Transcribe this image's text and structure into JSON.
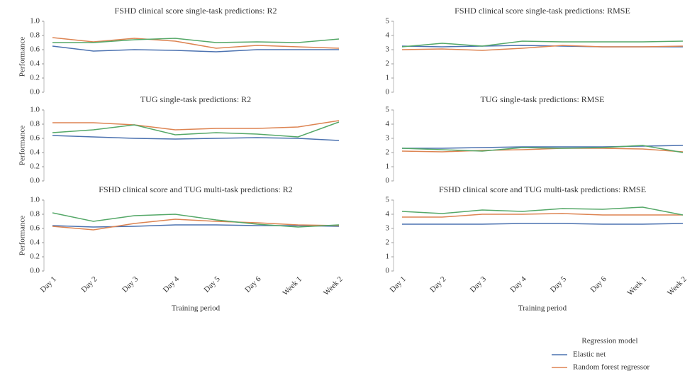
{
  "chart_data": [
    {
      "type": "line",
      "title": "FSHD clinical score single-task predictions: R2",
      "y_label": "Performance",
      "ylim": [
        0,
        1
      ],
      "yticks": [
        {
          "value": 0,
          "label": "0.0"
        },
        0.2,
        0.4,
        0.6,
        0.8,
        {
          "value": 1,
          "label": "1.0"
        }
      ],
      "series": [
        {
          "color": "#4c72b0",
          "values": [
            0.65,
            0.58,
            0.6,
            0.59,
            0.57,
            0.6,
            0.6,
            0.6
          ]
        },
        {
          "color": "#dd8452",
          "values": [
            0.77,
            0.71,
            0.76,
            0.72,
            0.62,
            0.66,
            0.64,
            0.62
          ]
        },
        {
          "color": "#55a868",
          "values": [
            0.7,
            0.7,
            0.74,
            0.76,
            0.7,
            0.71,
            0.7,
            0.75
          ]
        }
      ]
    },
    {
      "type": "line",
      "title": "FSHD clinical score single-task predictions: RMSE",
      "ylim": [
        0,
        5
      ],
      "yticks": [
        0,
        1,
        2,
        3,
        4,
        5
      ],
      "series": [
        {
          "color": "#4c72b0",
          "values": [
            3.25,
            3.2,
            3.25,
            3.3,
            3.25,
            3.2,
            3.2,
            3.2
          ]
        },
        {
          "color": "#dd8452",
          "values": [
            3.0,
            3.05,
            2.95,
            3.1,
            3.3,
            3.2,
            3.2,
            3.25
          ]
        },
        {
          "color": "#55a868",
          "values": [
            3.2,
            3.45,
            3.25,
            3.6,
            3.55,
            3.55,
            3.55,
            3.6
          ]
        }
      ]
    },
    {
      "type": "line",
      "title": "TUG single-task predictions: R2",
      "y_label": "Performance",
      "ylim": [
        0,
        1
      ],
      "yticks": [
        {
          "value": 0,
          "label": "0.0"
        },
        0.2,
        0.4,
        0.6,
        0.8,
        {
          "value": 1,
          "label": "1.0"
        }
      ],
      "series": [
        {
          "color": "#4c72b0",
          "values": [
            0.64,
            0.62,
            0.6,
            0.59,
            0.6,
            0.61,
            0.6,
            0.57
          ]
        },
        {
          "color": "#dd8452",
          "values": [
            0.82,
            0.82,
            0.79,
            0.72,
            0.74,
            0.74,
            0.76,
            0.85
          ]
        },
        {
          "color": "#55a868",
          "values": [
            0.68,
            0.72,
            0.79,
            0.65,
            0.68,
            0.66,
            0.62,
            0.83
          ]
        }
      ]
    },
    {
      "type": "line",
      "title": "TUG single-task predictions: RMSE",
      "ylim": [
        0,
        5
      ],
      "yticks": [
        0,
        1,
        2,
        3,
        4,
        5
      ],
      "series": [
        {
          "color": "#4c72b0",
          "values": [
            2.3,
            2.3,
            2.35,
            2.4,
            2.4,
            2.4,
            2.45,
            2.5
          ]
        },
        {
          "color": "#dd8452",
          "values": [
            2.1,
            2.05,
            2.15,
            2.2,
            2.3,
            2.3,
            2.25,
            2.05
          ]
        },
        {
          "color": "#55a868",
          "values": [
            2.3,
            2.2,
            2.1,
            2.35,
            2.3,
            2.35,
            2.5,
            2.0
          ]
        }
      ]
    },
    {
      "type": "line",
      "title": "FSHD clinical score and TUG multi-task predictions: R2",
      "y_label": "Performance",
      "x_label": "Training period",
      "categories": [
        "Day 1",
        "Day 2",
        "Day 3",
        "Day 4",
        "Day 5",
        "Day 6",
        "Week 1",
        "Week 2"
      ],
      "ylim": [
        0,
        1
      ],
      "yticks": [
        {
          "value": 0,
          "label": "0.0"
        },
        0.2,
        0.4,
        0.6,
        0.8,
        {
          "value": 1,
          "label": "1.0"
        }
      ],
      "series": [
        {
          "color": "#4c72b0",
          "values": [
            0.64,
            0.62,
            0.63,
            0.65,
            0.65,
            0.64,
            0.64,
            0.63
          ]
        },
        {
          "color": "#dd8452",
          "values": [
            0.63,
            0.58,
            0.67,
            0.73,
            0.7,
            0.68,
            0.65,
            0.64
          ]
        },
        {
          "color": "#55a868",
          "values": [
            0.82,
            0.7,
            0.78,
            0.8,
            0.72,
            0.66,
            0.62,
            0.65
          ]
        }
      ]
    },
    {
      "type": "line",
      "title": "FSHD clinical score and TUG multi-task predictions: RMSE",
      "x_label": "Training period",
      "categories": [
        "Day 1",
        "Day 2",
        "Day 3",
        "Day 4",
        "Day 5",
        "Day 6",
        "Week 1",
        "Week 2"
      ],
      "ylim": [
        0,
        5
      ],
      "yticks": [
        0,
        1,
        2,
        3,
        4,
        5
      ],
      "series": [
        {
          "color": "#4c72b0",
          "values": [
            3.3,
            3.3,
            3.3,
            3.35,
            3.35,
            3.3,
            3.3,
            3.35
          ]
        },
        {
          "color": "#dd8452",
          "values": [
            3.8,
            3.8,
            4.0,
            4.0,
            4.05,
            3.95,
            3.95,
            3.95
          ]
        },
        {
          "color": "#55a868",
          "values": [
            4.2,
            4.05,
            4.3,
            4.2,
            4.4,
            4.35,
            4.5,
            3.95
          ]
        }
      ]
    }
  ],
  "legend": {
    "title": "Regression model",
    "entries": [
      {
        "name": "Elastic net",
        "color": "#4c72b0"
      },
      {
        "name": "Random forest regressor",
        "color": "#dd8452"
      }
    ]
  }
}
